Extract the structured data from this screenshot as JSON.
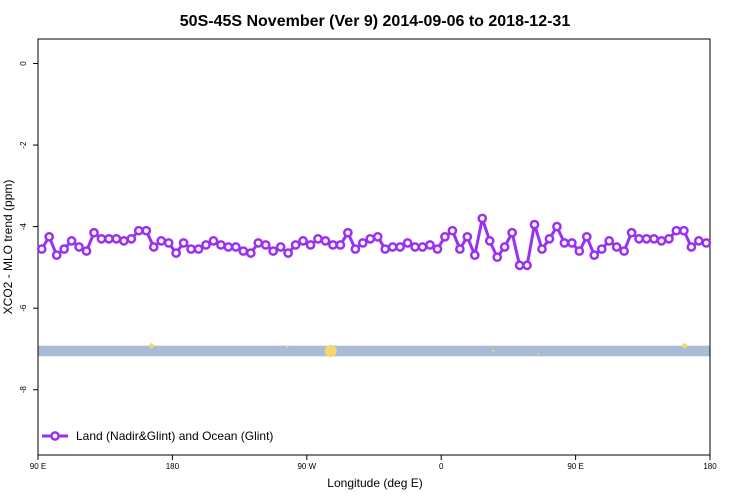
{
  "colors": {
    "series": "#9b30f0",
    "band": "#a8bcd8",
    "marker_yellow": "#f5d76e"
  },
  "chart_data": {
    "type": "line",
    "title": "50S-45S November (Ver 9)   2014-09-06 to 2018-12-31",
    "xlabel": "Longitude (deg E)",
    "ylabel": "XCO2 - MLO trend (ppm)",
    "xlim": [
      90,
      540
    ],
    "ylim": [
      -9.6,
      0.6
    ],
    "x_ticks": [
      {
        "pos": 90,
        "label": "90 E"
      },
      {
        "pos": 180,
        "label": "180"
      },
      {
        "pos": 270,
        "label": "90 W"
      },
      {
        "pos": 360,
        "label": "0"
      },
      {
        "pos": 450,
        "label": "90 E"
      },
      {
        "pos": 540,
        "label": "180"
      }
    ],
    "y_ticks": [
      {
        "value": 0,
        "label": "0"
      },
      {
        "value": -2,
        "label": "-2"
      },
      {
        "value": -4,
        "label": "-4"
      },
      {
        "value": -6,
        "label": "-6"
      },
      {
        "value": -8,
        "label": "-8"
      }
    ],
    "grid": false,
    "legend_position": "bottom-left",
    "band": {
      "y_top": -6.92,
      "y_bottom": -7.18
    },
    "series": [
      {
        "name": "Land (Nadir&Glint) and Ocean (Glint)",
        "x": [
          92.5,
          97.5,
          102.5,
          107.5,
          112.5,
          117.5,
          122.5,
          127.5,
          132.5,
          137.5,
          142.5,
          147.5,
          152.5,
          157.5,
          162.5,
          167.5,
          172.5,
          177.5,
          182.5,
          187.5,
          192.5,
          197.5,
          202.5,
          207.5,
          212.5,
          217.5,
          222.5,
          227.5,
          232.5,
          237.5,
          242.5,
          247.5,
          252.5,
          257.5,
          262.5,
          267.5,
          272.5,
          277.5,
          282.5,
          287.5,
          292.5,
          297.5,
          302.5,
          307.5,
          312.5,
          317.5,
          322.5,
          327.5,
          332.5,
          337.5,
          342.5,
          347.5,
          352.5,
          357.5,
          362.5,
          367.5,
          372.5,
          377.5,
          382.5,
          387.5,
          392.5,
          397.5,
          402.5,
          407.5,
          412.5,
          417.5,
          422.5,
          427.5,
          432.5,
          437.5,
          442.5,
          447.5,
          452.5,
          457.5,
          462.5,
          467.5,
          472.5,
          477.5,
          482.5,
          487.5,
          492.5,
          497.5,
          502.5,
          507.5,
          512.5,
          517.5,
          522.5,
          527.5,
          532.5,
          537.5
        ],
        "y": [
          -4.55,
          -4.25,
          -4.7,
          -4.55,
          -4.35,
          -4.5,
          -4.6,
          -4.15,
          -4.3,
          -4.3,
          -4.3,
          -4.35,
          -4.3,
          -4.1,
          -4.1,
          -4.5,
          -4.35,
          -4.4,
          -4.65,
          -4.4,
          -4.55,
          -4.55,
          -4.45,
          -4.35,
          -4.45,
          -4.5,
          -4.5,
          -4.6,
          -4.65,
          -4.4,
          -4.45,
          -4.6,
          -4.5,
          -4.65,
          -4.45,
          -4.35,
          -4.45,
          -4.3,
          -4.35,
          -4.45,
          -4.45,
          -4.15,
          -4.55,
          -4.4,
          -4.3,
          -4.25,
          -4.55,
          -4.5,
          -4.5,
          -4.4,
          -4.5,
          -4.5,
          -4.45,
          -4.55,
          -4.25,
          -4.1,
          -4.55,
          -4.25,
          -4.7,
          -3.8,
          -4.35,
          -4.75,
          -4.5,
          -4.15,
          -4.95,
          -4.95,
          -3.95,
          -4.55,
          -4.3,
          -4.0,
          -4.4,
          -4.4,
          -4.6,
          -4.25,
          -4.7,
          -4.55,
          -4.35,
          -4.5,
          -4.6,
          -4.15,
          -4.3,
          -4.3,
          -4.3,
          -4.35,
          -4.3,
          -4.1,
          -4.1,
          -4.5,
          -4.35,
          -4.4
        ]
      }
    ],
    "yellow_markers": [
      {
        "x": 166,
        "y": -6.92,
        "size": 2.5
      },
      {
        "x": 286,
        "y": -7.05,
        "size": 6
      },
      {
        "x": 395,
        "y": -7.05,
        "size": 1
      },
      {
        "x": 425,
        "y": -7.12,
        "size": 1
      },
      {
        "x": 257,
        "y": -6.95,
        "size": 1
      },
      {
        "x": 523,
        "y": -6.92,
        "size": 2.5
      }
    ]
  }
}
